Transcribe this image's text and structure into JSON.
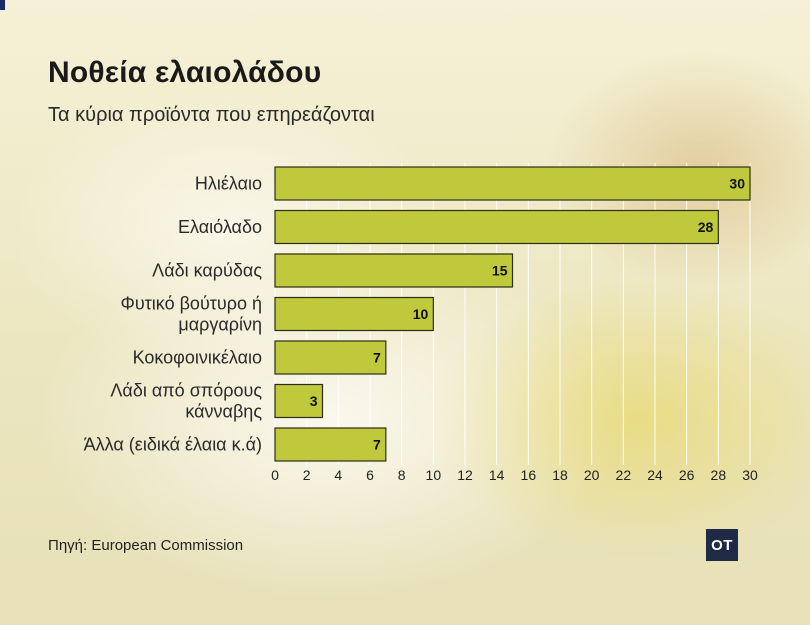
{
  "chart_data": {
    "type": "bar",
    "orientation": "horizontal",
    "title": "Νοθεία ελαιολάδου",
    "subtitle": "Τα κύρια προϊόντα που επηρεάζονται",
    "categories": [
      [
        "Ηλιέλαιο"
      ],
      [
        "Ελαιόλαδο"
      ],
      [
        "Λάδι καρύδας"
      ],
      [
        "Φυτικό βούτυρο ή",
        "μαργαρίνη"
      ],
      [
        "Κοκοφοινικέλαιο"
      ],
      [
        "Λάδι από σπόρους",
        "κάνναβης"
      ],
      [
        "Άλλα (ειδικά έλαια κ.ά)"
      ]
    ],
    "values": [
      30,
      28,
      15,
      10,
      7,
      3,
      7
    ],
    "xlim": [
      0,
      30
    ],
    "xticks": [
      0,
      2,
      4,
      6,
      8,
      10,
      12,
      14,
      16,
      18,
      20,
      22,
      24,
      26,
      28,
      30
    ],
    "grid": true,
    "bar_color": "#c0c83c",
    "source": "Πηγή: European Commission"
  },
  "logo": {
    "text": "OT",
    "color": "#1f2a44"
  }
}
